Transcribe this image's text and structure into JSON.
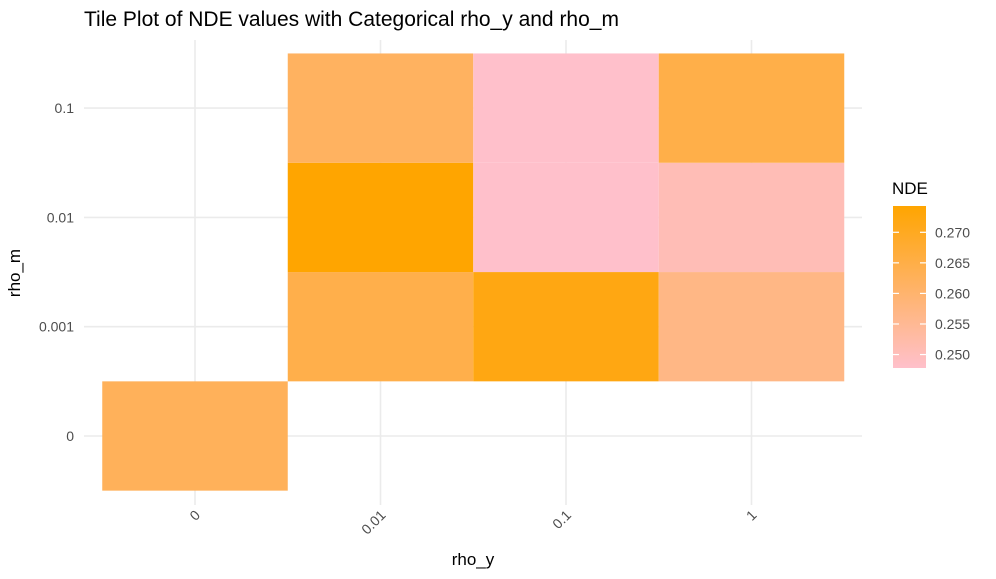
{
  "chart_data": {
    "type": "heatmap",
    "title": "Tile Plot of NDE values with Categorical rho_y and rho_m",
    "xlabel": "rho_y",
    "ylabel": "rho_m",
    "x_categories": [
      "0",
      "0.01",
      "0.1",
      "1"
    ],
    "y_categories": [
      "0",
      "0.001",
      "0.01",
      "0.1"
    ],
    "grid": true,
    "tiles": [
      {
        "x": "0",
        "y": "0",
        "value": 0.2625
      },
      {
        "x": "0.01",
        "y": "0.001",
        "value": 0.2645
      },
      {
        "x": "0.01",
        "y": "0.01",
        "value": 0.2743
      },
      {
        "x": "0.01",
        "y": "0.1",
        "value": 0.2618
      },
      {
        "x": "0.1",
        "y": "0.001",
        "value": 0.272
      },
      {
        "x": "0.1",
        "y": "0.01",
        "value": 0.2478
      },
      {
        "x": "0.1",
        "y": "0.1",
        "value": 0.2478
      },
      {
        "x": "1",
        "y": "0.001",
        "value": 0.257
      },
      {
        "x": "1",
        "y": "0.01",
        "value": 0.2505
      },
      {
        "x": "1",
        "y": "0.1",
        "value": 0.2648
      }
    ],
    "legend": {
      "title": "NDE",
      "position": "right",
      "min": 0.2478,
      "max": 0.2743,
      "low_color": "#ffc0cb",
      "high_color": "#ffa500",
      "breaks": [
        0.25,
        0.255,
        0.26,
        0.265,
        0.27
      ],
      "break_labels": [
        "0.250",
        "0.255",
        "0.260",
        "0.265",
        "0.270"
      ]
    }
  }
}
